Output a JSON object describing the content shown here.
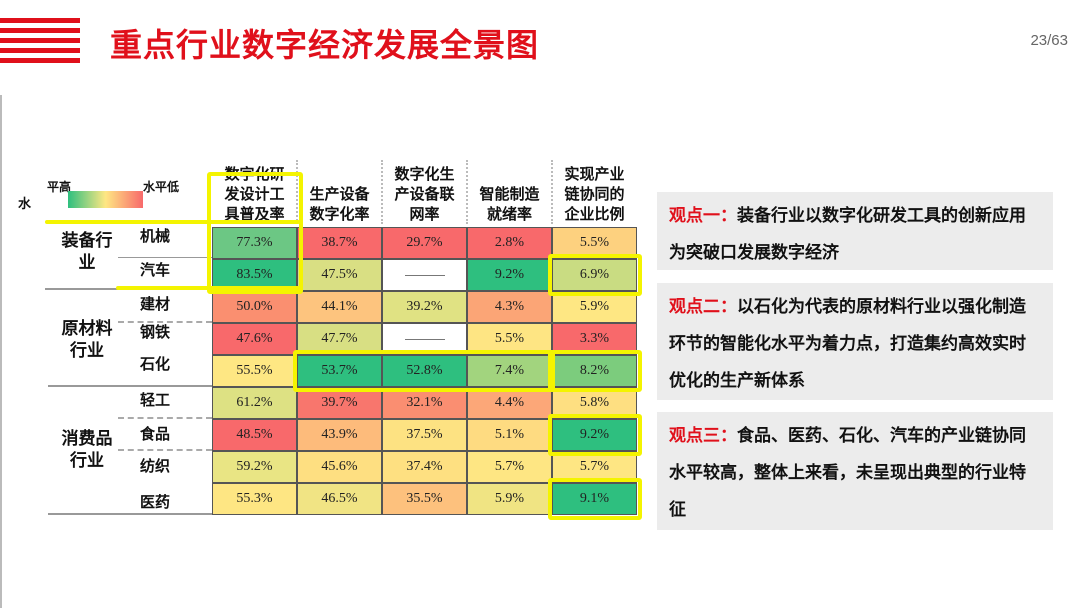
{
  "header": {
    "title": "重点行业数字经济发展全景图",
    "page": "23/63",
    "brand_color": "#e0101b"
  },
  "legend": {
    "axis_label": "水",
    "high": "平高",
    "low": "水平低",
    "gradient": [
      "#2ebf7f",
      "#fee783",
      "#f8696b"
    ]
  },
  "table": {
    "columns": [
      "数字化研\n发设计工\n具普及率",
      "生产设备\n数字化率",
      "数字化生\n产设备联\n网率",
      "智能制造\n就绪率",
      "实现产业\n链协同的\n企业比例"
    ],
    "groups": [
      {
        "label": "装备行\n业"
      },
      {
        "label": "原材料\n行业"
      },
      {
        "label": "消费品\n行业"
      }
    ],
    "rows": [
      {
        "label": "机械",
        "values": [
          "77.3%",
          "38.7%",
          "29.7%",
          "2.8%",
          "5.5%"
        ],
        "colors": [
          "#6cc784",
          "#f8696b",
          "#f8696b",
          "#f8696b",
          "#fdd17f"
        ]
      },
      {
        "label": "汽车",
        "values": [
          "83.5%",
          "47.5%",
          "——",
          "9.2%",
          "6.9%"
        ],
        "colors": [
          "#2ebf7f",
          "#d9df83",
          "#ffffff",
          "#2ebf7f",
          "#c9dc82"
        ]
      },
      {
        "label": "建材",
        "values": [
          "50.0%",
          "44.1%",
          "39.2%",
          "4.3%",
          "5.9%"
        ],
        "colors": [
          "#fa8f70",
          "#fdc47e",
          "#e0e283",
          "#fba576",
          "#fee783"
        ]
      },
      {
        "label": "钢铁",
        "values": [
          "47.6%",
          "47.7%",
          "——",
          "5.5%",
          "3.3%"
        ],
        "colors": [
          "#f8696b",
          "#d8df83",
          "#ffffff",
          "#fee583",
          "#f8696b"
        ]
      },
      {
        "label": "石化",
        "values": [
          "55.5%",
          "53.7%",
          "52.8%",
          "7.4%",
          "8.2%"
        ],
        "colors": [
          "#fee783",
          "#2ebf7f",
          "#2ebf7f",
          "#a2d47e",
          "#7ccc7d"
        ]
      },
      {
        "label": "轻工",
        "values": [
          "61.2%",
          "39.7%",
          "32.1%",
          "4.4%",
          "5.8%"
        ],
        "colors": [
          "#dde183",
          "#f8766d",
          "#fa8e71",
          "#fca778",
          "#fedf81"
        ]
      },
      {
        "label": "食品",
        "values": [
          "48.5%",
          "43.9%",
          "37.5%",
          "5.1%",
          "9.2%"
        ],
        "colors": [
          "#f8696b",
          "#fdbb7b",
          "#fde282",
          "#fedb81",
          "#2ebf7f"
        ]
      },
      {
        "label": "纺织",
        "values": [
          "59.2%",
          "45.6%",
          "37.4%",
          "5.7%",
          "5.7%"
        ],
        "colors": [
          "#e9e584",
          "#fedf81",
          "#fee081",
          "#fee683",
          "#fee683"
        ]
      },
      {
        "label": "医药",
        "values": [
          "55.3%",
          "46.5%",
          "35.5%",
          "5.9%",
          "9.1%"
        ],
        "colors": [
          "#fee683",
          "#f1e484",
          "#fdc17d",
          "#f0e483",
          "#2ebf7f"
        ]
      }
    ],
    "highlight_color": "#f4f400"
  },
  "viewpoints": [
    {
      "lead": "观点一：",
      "text": "装备行业以数字化研发工具的创新应用为突破口发展数字经济"
    },
    {
      "lead": "观点二：",
      "text": "以石化为代表的原材料行业以强化制造环节的智能化水平为着力点，打造集约高效实时优化的生产新体系"
    },
    {
      "lead": "观点三：",
      "text": "食品、医药、石化、汽车的产业链协同水平较高，整体上来看，未呈现出典型的行业特征"
    }
  ]
}
